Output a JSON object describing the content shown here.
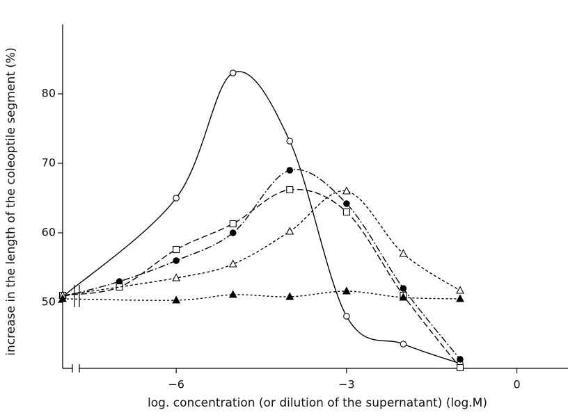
{
  "chart_data": {
    "type": "line",
    "xlabel": "log. concentration (or dilution of the supernatant) (log.M)",
    "ylabel": "increase in the length of the coleoptile segment (%)",
    "xlim": [
      -8,
      0.9
    ],
    "ylim": [
      40.5,
      90
    ],
    "xticks": [
      {
        "value": -6,
        "label": "−6"
      },
      {
        "value": -3,
        "label": "−3"
      },
      0
    ],
    "yticks": [
      50,
      60,
      70,
      80
    ],
    "series": [
      {
        "color": "#000000",
        "line": "solid",
        "marker": "circle-open",
        "x": [
          -8,
          -6,
          -5,
          -4,
          -3,
          -2,
          -1
        ],
        "values": [
          50.8,
          65,
          83,
          73.2,
          48,
          44,
          41.2
        ]
      },
      {
        "color": "#000000",
        "line": "dash-dot",
        "marker": "circle-filled",
        "x": [
          -8,
          -7,
          -6,
          -5,
          -4,
          -3,
          -2,
          -1
        ],
        "values": [
          50.8,
          53,
          56,
          60,
          69,
          64.2,
          52,
          41.8
        ]
      },
      {
        "color": "#000000",
        "line": "dashed",
        "marker": "square-open",
        "x": [
          -8,
          -7,
          -6,
          -5,
          -4,
          -3,
          -2,
          -1
        ],
        "values": [
          51,
          52.2,
          57.6,
          61.3,
          66.2,
          63,
          51,
          40.6
        ]
      },
      {
        "color": "#000000",
        "line": "dotted",
        "marker": "triangle-open",
        "x": [
          -8,
          -6,
          -5,
          -4,
          -3,
          -2,
          -1
        ],
        "values": [
          51,
          53.5,
          55.5,
          60.2,
          66,
          57,
          51.7
        ]
      },
      {
        "color": "#000000",
        "line": "fine-dashed",
        "marker": "triangle-filled",
        "x": [
          -8,
          -6,
          -5,
          -4,
          -3,
          -2,
          -1
        ],
        "values": [
          50.5,
          50.3,
          51.1,
          50.8,
          51.6,
          50.7,
          50.5
        ]
      }
    ]
  }
}
